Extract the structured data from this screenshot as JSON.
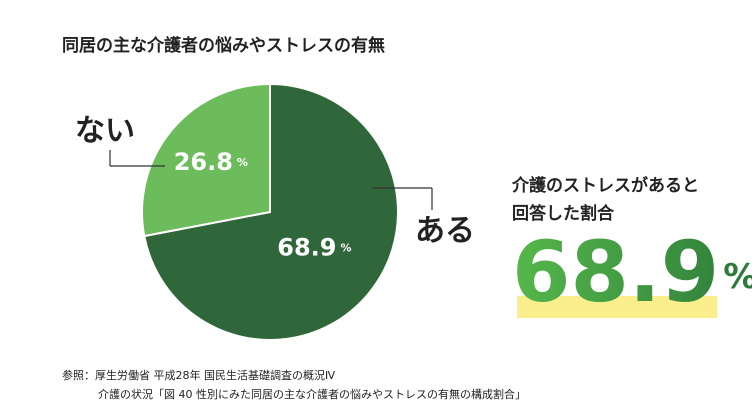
{
  "chart_data": {
    "type": "pie",
    "title": "同居の主な介護者の悩みやストレスの有無",
    "categories": [
      "ある",
      "ない"
    ],
    "values": [
      68.9,
      26.8
    ],
    "unit": "%",
    "colors": [
      "#30673a",
      "#6dbc5b"
    ],
    "annotation": [
      "介護のストレスがあると",
      "回答した割合"
    ],
    "source": [
      "参照：厚生労働省 平成28年 国民生活基礎調査の概況Ⅳ",
      "介護の状況「図 40 性別にみた同居の主な介護者の悩みやストレスの有無の構成割合」"
    ]
  }
}
